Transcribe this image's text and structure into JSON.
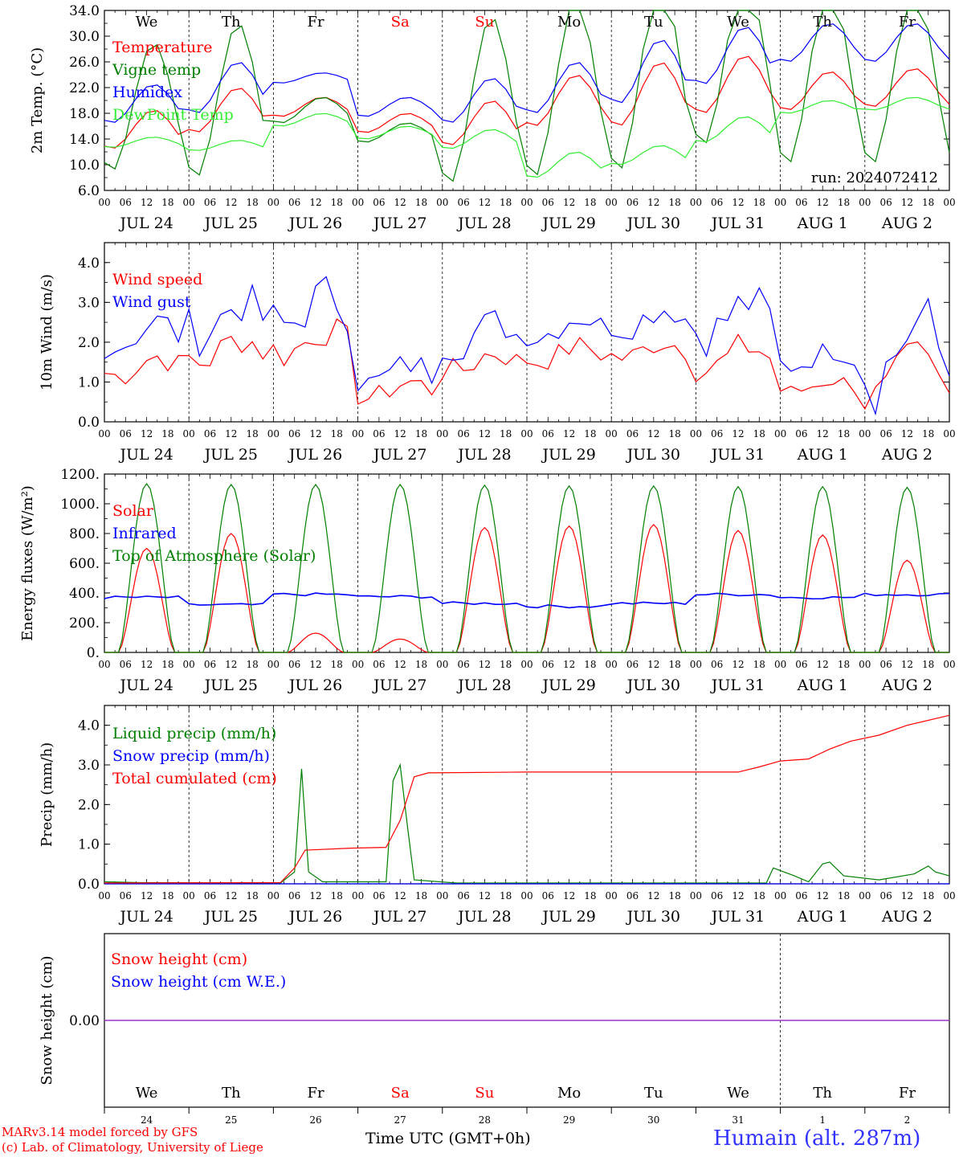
{
  "footer": {
    "credit_line1": "MARv3.14 model forced by GFS",
    "credit_line2": "(c) Lab. of Climatology, University of Liege",
    "x_title": "Time UTC (GMT+0h)",
    "station": "Humain (alt. 287m)"
  },
  "colors": {
    "red": "#ff0000",
    "green": "#008000",
    "blue": "#0000ff",
    "lightgreen": "#33ee33",
    "dark": "#000000"
  },
  "days": [
    "JUL 24",
    "JUL 25",
    "JUL 26",
    "JUL 27",
    "JUL 28",
    "JUL 29",
    "JUL 30",
    "JUL 31",
    "AUG  1",
    "AUG  2"
  ],
  "weekdays": [
    {
      "label": "We",
      "color": "#000000"
    },
    {
      "label": "Th",
      "color": "#000000"
    },
    {
      "label": "Fr",
      "color": "#000000"
    },
    {
      "label": "Sa",
      "color": "#ff0000"
    },
    {
      "label": "Su",
      "color": "#ff0000"
    },
    {
      "label": "Mo",
      "color": "#000000"
    },
    {
      "label": "Tu",
      "color": "#000000"
    },
    {
      "label": "We",
      "color": "#000000"
    },
    {
      "label": "Th",
      "color": "#000000"
    },
    {
      "label": "Fr",
      "color": "#000000"
    }
  ],
  "day_numbers": [
    "24",
    "25",
    "26",
    "27",
    "28",
    "29",
    "30",
    "31",
    "1",
    "2"
  ],
  "hour_labels": [
    "00",
    "06",
    "12",
    "18"
  ],
  "final_hour_label": "00",
  "chart_data": [
    {
      "type": "line",
      "ylabel": "2m Temp. (°C)",
      "ylim": [
        6,
        34
      ],
      "yticks": [
        "6.0",
        "10.0",
        "14.0",
        "18.0",
        "22.0",
        "26.0",
        "30.0",
        "34.0"
      ],
      "ytick_values": [
        6,
        10,
        14,
        18,
        22,
        26,
        30,
        34
      ],
      "annotation": "run: 2024072412",
      "show_weekdays": true,
      "legend": [
        {
          "label": "Temperature",
          "color": "#ff0000"
        },
        {
          "label": "Vigne temp",
          "color": "#008000"
        },
        {
          "label": "Humidex",
          "color": "#0000ff"
        },
        {
          "label": "DewPoint Temp",
          "color": "#33ee33"
        }
      ],
      "series": [
        {
          "name": "Temperature",
          "color": "#ff0000",
          "kind": "diurnal",
          "base": [
            15.5,
            18.5,
            19,
            16.5,
            16.5,
            20,
            21,
            22.5,
            21.5,
            22
          ],
          "amp": [
            3,
            3.5,
            1.5,
            1.5,
            3.5,
            4,
            5,
            4.5,
            3,
            3
          ],
          "peak": 14
        },
        {
          "name": "Vigne temp",
          "color": "#008000",
          "kind": "diurnal",
          "base": [
            19,
            20,
            18.5,
            15,
            20,
            22,
            24,
            26,
            24,
            24
          ],
          "amp": [
            10,
            12,
            2,
            1.5,
            13,
            14,
            15,
            13,
            14,
            14
          ],
          "peak": 14
        },
        {
          "name": "Humidex",
          "color": "#0000ff",
          "kind": "diurnal",
          "base": [
            19.5,
            22,
            23.5,
            19,
            20,
            22,
            24.5,
            27,
            29,
            29
          ],
          "amp": [
            3,
            4,
            0.8,
            1.5,
            3.5,
            4,
            5,
            4.5,
            3,
            3
          ],
          "peak": 14
        },
        {
          "name": "DewPoint Temp",
          "color": "#33ee33",
          "kind": "diurnal",
          "base": [
            13.5,
            13,
            17,
            15,
            14,
            10,
            11.5,
            15.5,
            19,
            19.5
          ],
          "amp": [
            0.8,
            0.8,
            1,
            1,
            1.5,
            2,
            1.5,
            2,
            1,
            1
          ],
          "peak": 14
        }
      ]
    },
    {
      "type": "line",
      "ylabel": "10m Wind (m/s)",
      "ylim": [
        0,
        4.5
      ],
      "yticks": [
        "0.0",
        "1.0",
        "2.0",
        "3.0",
        "4.0"
      ],
      "ytick_values": [
        0,
        1,
        2,
        3,
        4
      ],
      "show_weekdays": false,
      "legend": [
        {
          "label": "Wind speed",
          "color": "#ff0000"
        },
        {
          "label": "Wind gust",
          "color": "#0000ff"
        }
      ],
      "series": [
        {
          "name": "Wind speed",
          "color": "#ff0000",
          "kind": "noisy",
          "base": [
            1.4,
            1.8,
            2.0,
            0.8,
            1.5,
            1.7,
            1.8,
            1.6,
            0.9,
            1.0
          ],
          "amp": [
            0.5,
            0.6,
            0.6,
            0.4,
            0.5,
            0.4,
            0.4,
            0.6,
            0.3,
            1.0
          ],
          "peak": 15
        },
        {
          "name": "Wind gust",
          "color": "#0000ff",
          "kind": "noisy",
          "base": [
            2.2,
            2.6,
            2.8,
            1.2,
            2.2,
            2.4,
            2.6,
            2.6,
            1.6,
            1.8
          ],
          "amp": [
            0.6,
            0.8,
            0.8,
            0.5,
            0.6,
            0.5,
            0.5,
            0.8,
            0.4,
            1.4
          ],
          "peak": 15
        }
      ]
    },
    {
      "type": "line",
      "ylabel": "Energy fluxes (W/m²)",
      "ylim": [
        0,
        1200
      ],
      "yticks": [
        "0.",
        "200.",
        "400.",
        "600.",
        "800.",
        "1000.",
        "1200."
      ],
      "ytick_values": [
        0,
        200,
        400,
        600,
        800,
        1000,
        1200
      ],
      "show_weekdays": false,
      "legend": [
        {
          "label": "Solar",
          "color": "#ff0000"
        },
        {
          "label": "Infrared",
          "color": "#0000ff"
        },
        {
          "label": "Top of Atmosphere (Solar)",
          "color": "#008000"
        }
      ],
      "series": [
        {
          "name": "Solar",
          "color": "#ff0000",
          "kind": "solar",
          "peaks": [
            700,
            800,
            130,
            90,
            840,
            850,
            860,
            820,
            790,
            620
          ]
        },
        {
          "name": "Infrared",
          "color": "#0000ff",
          "kind": "flat",
          "values": [
            370,
            320,
            390,
            375,
            330,
            310,
            330,
            390,
            370,
            390
          ]
        },
        {
          "name": "Top of Atmosphere (Solar)",
          "color": "#008000",
          "kind": "solar",
          "peaks": [
            1135,
            1130,
            1130,
            1130,
            1125,
            1120,
            1120,
            1115,
            1115,
            1110
          ]
        }
      ]
    },
    {
      "type": "line",
      "ylabel": "Precip (mm/h)",
      "ylim": [
        0,
        4.5
      ],
      "yticks": [
        "0.0",
        "1.0",
        "2.0",
        "3.0",
        "4.0"
      ],
      "ytick_values": [
        0,
        1,
        2,
        3,
        4
      ],
      "show_weekdays": false,
      "legend": [
        {
          "label": "Liquid precip (mm/h)",
          "color": "#008000"
        },
        {
          "label": "Snow precip (mm/h)",
          "color": "#0000ff"
        },
        {
          "label": "Total cumulated (cm)",
          "color": "#ff0000"
        }
      ],
      "series": [
        {
          "name": "Liquid precip (mm/h)",
          "color": "#008000",
          "kind": "points",
          "points": [
            [
              0,
              0.05
            ],
            [
              10,
              0.03
            ],
            [
              50,
              0.02
            ],
            [
              54,
              0.3
            ],
            [
              56,
              2.9
            ],
            [
              58,
              0.3
            ],
            [
              62,
              0.05
            ],
            [
              80,
              0.05
            ],
            [
              82,
              2.6
            ],
            [
              84,
              3.0
            ],
            [
              86,
              1.5
            ],
            [
              88,
              0.1
            ],
            [
              100,
              0.02
            ],
            [
              188,
              0.02
            ],
            [
              190,
              0.4
            ],
            [
              196,
              0.2
            ],
            [
              200,
              0.05
            ],
            [
              204,
              0.5
            ],
            [
              206,
              0.55
            ],
            [
              210,
              0.2
            ],
            [
              220,
              0.1
            ],
            [
              230,
              0.25
            ],
            [
              234,
              0.45
            ],
            [
              236,
              0.3
            ],
            [
              240,
              0.2
            ]
          ]
        },
        {
          "name": "Snow precip (mm/h)",
          "color": "#0000ff",
          "kind": "points",
          "points": [
            [
              0,
              0
            ],
            [
              240,
              0
            ]
          ]
        },
        {
          "name": "Total cumulated (cm)",
          "color": "#ff0000",
          "kind": "points",
          "points": [
            [
              0,
              0.02
            ],
            [
              50,
              0.03
            ],
            [
              54,
              0.4
            ],
            [
              57,
              0.85
            ],
            [
              70,
              0.9
            ],
            [
              80,
              0.92
            ],
            [
              84,
              1.6
            ],
            [
              88,
              2.7
            ],
            [
              92,
              2.8
            ],
            [
              120,
              2.82
            ],
            [
              180,
              2.82
            ],
            [
              186,
              2.95
            ],
            [
              192,
              3.1
            ],
            [
              200,
              3.15
            ],
            [
              206,
              3.4
            ],
            [
              212,
              3.6
            ],
            [
              220,
              3.75
            ],
            [
              228,
              4.0
            ],
            [
              240,
              4.25
            ]
          ]
        }
      ]
    },
    {
      "type": "line",
      "ylabel": "Snow height (cm)",
      "ylim": [
        -1,
        1
      ],
      "yticks": [
        "0.00"
      ],
      "ytick_values": [
        0
      ],
      "show_weekdays": false,
      "legend": [
        {
          "label": "Snow height (cm)",
          "color": "#ff0000"
        },
        {
          "label": "Snow height (cm W.E.)",
          "color": "#0000ff"
        }
      ],
      "series": [
        {
          "name": "Snow height (cm)",
          "color": "#9933cc",
          "kind": "points",
          "points": [
            [
              0,
              0
            ],
            [
              240,
              0
            ]
          ]
        }
      ]
    }
  ]
}
